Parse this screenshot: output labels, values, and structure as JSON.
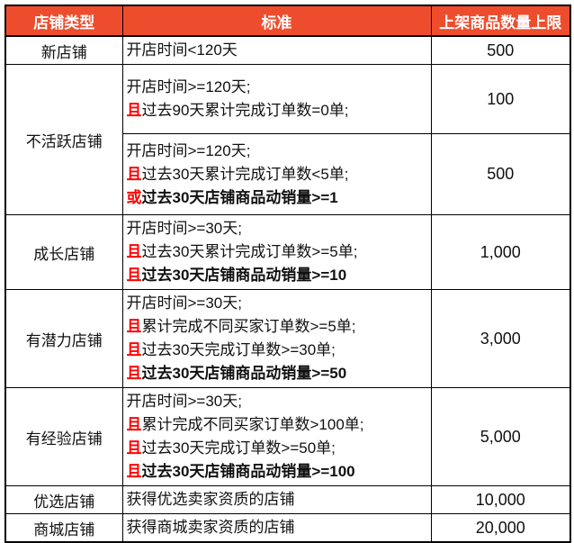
{
  "table": {
    "headers": [
      {
        "label": "店铺类型"
      },
      {
        "label": "标准"
      },
      {
        "label": "上架商品数量上限"
      }
    ],
    "rows": [
      {
        "type": "新店铺",
        "sub_rows": [
          {
            "criteria": [
              {
                "prefix": "",
                "text": "开店时间<120天",
                "bold": false
              }
            ],
            "limit": "500"
          }
        ]
      },
      {
        "type": "不活跃店铺",
        "sub_rows": [
          {
            "criteria": [
              {
                "prefix": "",
                "text": "开店时间>=120天;",
                "bold": false
              },
              {
                "prefix": "且",
                "text": "过去90天累计完成订单数=0单;",
                "bold": false
              }
            ],
            "limit": "100"
          },
          {
            "criteria": [
              {
                "prefix": "",
                "text": "开店时间>=120天;",
                "bold": false
              },
              {
                "prefix": "且",
                "text": "过去30天累计完成订单数<5单;",
                "bold": false
              },
              {
                "prefix": "或",
                "text": "过去30天店铺商品动销量>=1",
                "bold": true
              }
            ],
            "limit": "500"
          }
        ]
      },
      {
        "type": "成长店铺",
        "sub_rows": [
          {
            "criteria": [
              {
                "prefix": "",
                "text": "开店时间>=30天;",
                "bold": false
              },
              {
                "prefix": "且",
                "text": "过去30天累计完成订单数>=5单;",
                "bold": false
              },
              {
                "prefix": "且",
                "text": "过去30天店铺商品动销量>=10",
                "bold": true
              }
            ],
            "limit": "1,000"
          }
        ]
      },
      {
        "type": "有潜力店铺",
        "sub_rows": [
          {
            "criteria": [
              {
                "prefix": "",
                "text": "开店时间>=30天;",
                "bold": false
              },
              {
                "prefix": "且",
                "text": "累计完成不同买家订单数>=5单;",
                "bold": false
              },
              {
                "prefix": "且",
                "text": "过去30天完成订单数>=30单;",
                "bold": false
              },
              {
                "prefix": "且",
                "text": "过去30天店铺商品动销量>=50",
                "bold": true
              }
            ],
            "limit": "3,000"
          }
        ]
      },
      {
        "type": "有经验店铺",
        "sub_rows": [
          {
            "criteria": [
              {
                "prefix": "",
                "text": "开店时间>=30天;",
                "bold": false
              },
              {
                "prefix": "且",
                "text": "累计完成不同买家订单数>100单;",
                "bold": false
              },
              {
                "prefix": "且",
                "text": "过去30天完成订单数>=50单;",
                "bold": false
              },
              {
                "prefix": "且",
                "text": "过去30天店铺商品动销量>=100",
                "bold": true
              }
            ],
            "limit": "5,000"
          }
        ]
      },
      {
        "type": "优选店铺",
        "sub_rows": [
          {
            "criteria": [
              {
                "prefix": "",
                "text": "获得优选卖家资质的店铺",
                "bold": false
              }
            ],
            "limit": "10,000"
          }
        ]
      },
      {
        "type": "商城店铺",
        "sub_rows": [
          {
            "criteria": [
              {
                "prefix": "",
                "text": "获得商城卖家资质的店铺",
                "bold": false
              }
            ],
            "limit": "20,000"
          }
        ]
      }
    ],
    "colors": {
      "header_bg": "#EE4D2D",
      "header_fg": "#FFFFFF",
      "conjunction_red": "#FF0000",
      "border": "#000000",
      "text": "#111111"
    }
  }
}
